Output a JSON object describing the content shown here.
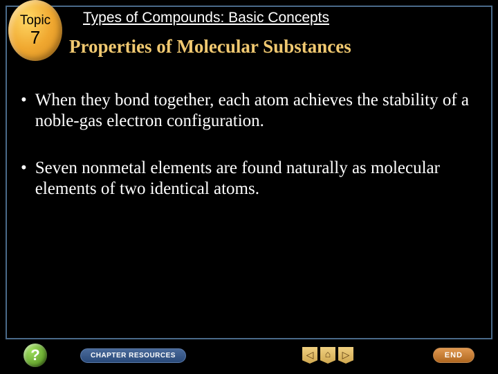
{
  "badge": {
    "label": "Topic",
    "number": "7"
  },
  "header": {
    "title": "Types of Compounds: Basic Concepts",
    "subtitle": "Properties of Molecular Substances"
  },
  "bullets": [
    "When they bond together, each atom achieves the stability of a noble-gas electron configuration.",
    "Seven nonmetal elements are found naturally as molecular elements of two identical atoms."
  ],
  "nav": {
    "help": "?",
    "chapter": "CHAPTER RESOURCES",
    "arrows": {
      "back": "◁",
      "home": "⌂",
      "forward": "▷"
    },
    "end": "END"
  },
  "colors": {
    "background": "#000000",
    "border": "#4a6a8a",
    "subtitle": "#f0c870",
    "text": "#ffffff"
  }
}
